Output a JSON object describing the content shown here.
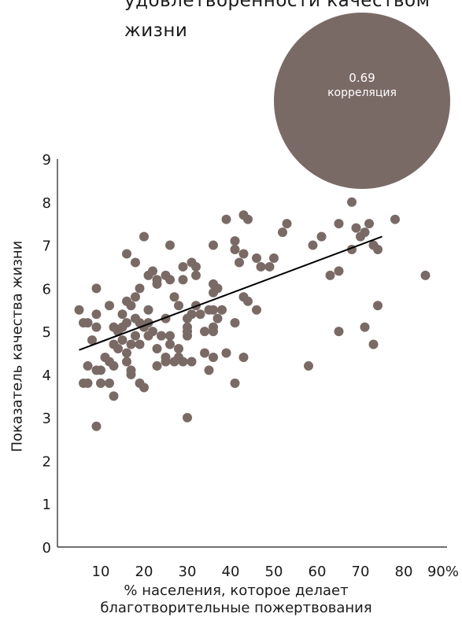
{
  "title_lines": [
    "удовлетворенности качеством",
    "жизни"
  ],
  "correlation": {
    "value": "0.69",
    "label": "корреляция"
  },
  "colors": {
    "points": "#7a6a66",
    "line": "#000000",
    "axis": "#1a1a1a",
    "circle": "#7a6a66"
  },
  "chart_data": {
    "type": "scatter",
    "xlabel_lines": [
      "% населения, которое делает",
      "благотворительные пожертвования"
    ],
    "ylabel": "Показатель качества жизни",
    "xlim": [
      0,
      90
    ],
    "ylim": [
      0,
      9
    ],
    "x_ticks": [
      "10",
      "20",
      "30",
      "40",
      "50",
      "60",
      "70",
      "80",
      "90%"
    ],
    "y_ticks": [
      "0",
      "1",
      "2",
      "3",
      "4",
      "5",
      "6",
      "7",
      "8",
      "9"
    ],
    "trendline": {
      "x": [
        5,
        75
      ],
      "y": [
        4.57,
        7.2
      ]
    },
    "points": [
      [
        5,
        5.5
      ],
      [
        6,
        5.2
      ],
      [
        6,
        3.8
      ],
      [
        7,
        3.8
      ],
      [
        7,
        4.2
      ],
      [
        7,
        5.2
      ],
      [
        8,
        4.8
      ],
      [
        9,
        5.1
      ],
      [
        9,
        5.4
      ],
      [
        9,
        6.0
      ],
      [
        9,
        4.1
      ],
      [
        9,
        2.8
      ],
      [
        10,
        4.1
      ],
      [
        10,
        3.8
      ],
      [
        11,
        4.4
      ],
      [
        12,
        4.3
      ],
      [
        12,
        3.8
      ],
      [
        12,
        5.6
      ],
      [
        13,
        5.1
      ],
      [
        13,
        4.7
      ],
      [
        13,
        4.2
      ],
      [
        13,
        3.5
      ],
      [
        14,
        4.6
      ],
      [
        14,
        5.0
      ],
      [
        15,
        5.1
      ],
      [
        15,
        5.4
      ],
      [
        15,
        4.8
      ],
      [
        16,
        5.7
      ],
      [
        16,
        4.3
      ],
      [
        16,
        4.5
      ],
      [
        16,
        5.2
      ],
      [
        16,
        6.8
      ],
      [
        17,
        4.0
      ],
      [
        17,
        4.7
      ],
      [
        17,
        5.6
      ],
      [
        17,
        4.1
      ],
      [
        18,
        5.3
      ],
      [
        18,
        5.8
      ],
      [
        18,
        4.9
      ],
      [
        18,
        6.6
      ],
      [
        19,
        4.7
      ],
      [
        19,
        5.2
      ],
      [
        19,
        6.0
      ],
      [
        19,
        3.8
      ],
      [
        20,
        7.2
      ],
      [
        20,
        5.1
      ],
      [
        20,
        3.7
      ],
      [
        21,
        5.5
      ],
      [
        21,
        6.3
      ],
      [
        21,
        5.2
      ],
      [
        21,
        4.9
      ],
      [
        22,
        6.4
      ],
      [
        22,
        5.0
      ],
      [
        23,
        4.6
      ],
      [
        23,
        6.1
      ],
      [
        23,
        6.2
      ],
      [
        23,
        4.2
      ],
      [
        24,
        4.9
      ],
      [
        25,
        4.3
      ],
      [
        25,
        6.3
      ],
      [
        25,
        5.3
      ],
      [
        25,
        4.4
      ],
      [
        26,
        4.7
      ],
      [
        26,
        4.9
      ],
      [
        26,
        7.0
      ],
      [
        26,
        6.2
      ],
      [
        27,
        5.8
      ],
      [
        27,
        4.3
      ],
      [
        28,
        4.4
      ],
      [
        28,
        4.6
      ],
      [
        28,
        5.6
      ],
      [
        29,
        6.5
      ],
      [
        29,
        6.2
      ],
      [
        29,
        4.3
      ],
      [
        30,
        5.0
      ],
      [
        30,
        5.1
      ],
      [
        30,
        5.3
      ],
      [
        30,
        4.9
      ],
      [
        30,
        3.0
      ],
      [
        31,
        5.4
      ],
      [
        31,
        4.3
      ],
      [
        31,
        6.6
      ],
      [
        32,
        6.3
      ],
      [
        32,
        6.5
      ],
      [
        32,
        5.6
      ],
      [
        33,
        5.4
      ],
      [
        34,
        5.0
      ],
      [
        34,
        4.5
      ],
      [
        35,
        4.1
      ],
      [
        35,
        5.5
      ],
      [
        36,
        6.1
      ],
      [
        36,
        5.9
      ],
      [
        36,
        5.5
      ],
      [
        36,
        5.1
      ],
      [
        36,
        5.0
      ],
      [
        36,
        4.4
      ],
      [
        36,
        7.0
      ],
      [
        37,
        5.3
      ],
      [
        37,
        6.0
      ],
      [
        38,
        5.5
      ],
      [
        39,
        7.6
      ],
      [
        39,
        4.5
      ],
      [
        41,
        7.1
      ],
      [
        41,
        6.9
      ],
      [
        41,
        5.2
      ],
      [
        41,
        3.8
      ],
      [
        42,
        6.6
      ],
      [
        43,
        7.7
      ],
      [
        43,
        6.8
      ],
      [
        43,
        5.8
      ],
      [
        43,
        4.4
      ],
      [
        44,
        7.6
      ],
      [
        44,
        5.7
      ],
      [
        46,
        6.7
      ],
      [
        46,
        5.5
      ],
      [
        47,
        6.5
      ],
      [
        49,
        6.5
      ],
      [
        50,
        6.7
      ],
      [
        52,
        7.3
      ],
      [
        53,
        7.5
      ],
      [
        58,
        4.2
      ],
      [
        59,
        7.0
      ],
      [
        61,
        7.2
      ],
      [
        63,
        6.3
      ],
      [
        65,
        7.5
      ],
      [
        65,
        6.4
      ],
      [
        65,
        5.0
      ],
      [
        68,
        8.0
      ],
      [
        68,
        6.9
      ],
      [
        69,
        7.4
      ],
      [
        70,
        7.2
      ],
      [
        71,
        7.3
      ],
      [
        71,
        5.1
      ],
      [
        72,
        7.5
      ],
      [
        73,
        7.0
      ],
      [
        73,
        4.7
      ],
      [
        74,
        6.9
      ],
      [
        74,
        5.6
      ],
      [
        78,
        7.6
      ],
      [
        85,
        6.3
      ]
    ]
  }
}
